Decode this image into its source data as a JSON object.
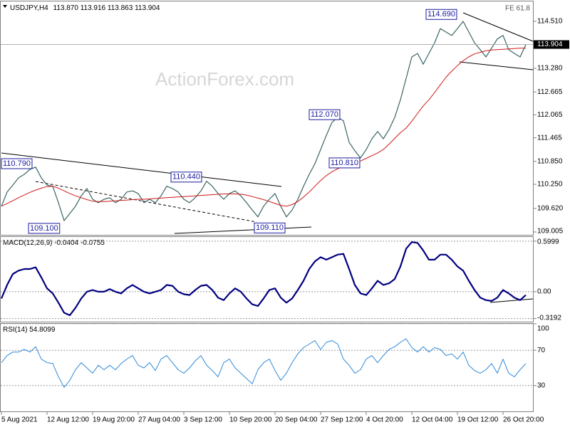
{
  "watermark": "ActionForex.com",
  "chart_data": [
    {
      "type": "line",
      "symbol": "USDJPY,H4",
      "ohlc_header": [
        "113.870",
        "113.916",
        "113.863",
        "113.904"
      ],
      "corner_note": "FE 61.8",
      "ylim": [
        108.93,
        115.03
      ],
      "yticks": [
        {
          "value": 114.51,
          "label": "114.510"
        },
        {
          "value": 113.28,
          "label": "113.280"
        },
        112.665,
        112.065,
        111.465,
        {
          "value": 110.85,
          "label": "110.850"
        },
        {
          "value": 110.25,
          "label": "110.250"
        },
        {
          "value": 109.62,
          "label": "109.620"
        },
        109.005
      ],
      "grid": false,
      "last_price": {
        "value": 113.904,
        "label": "113.904"
      },
      "annotations": [
        {
          "label": "114.690",
          "value": 114.69
        },
        {
          "label": "112.070",
          "value": 112.07
        },
        {
          "label": "110.810",
          "value": 110.81
        },
        {
          "label": "110.790",
          "value": 110.79
        },
        {
          "label": "110.440",
          "value": 110.44
        },
        {
          "label": "109.100",
          "value": 109.1
        },
        {
          "label": "109.110",
          "value": 109.11
        }
      ],
      "series": [
        {
          "color": "#3a6464",
          "width": 1.2,
          "values": [
            109.68,
            110.05,
            110.23,
            110.42,
            110.51,
            110.64,
            110.7,
            110.42,
            110.23,
            110.2,
            109.77,
            109.3,
            109.49,
            109.68,
            109.95,
            110.14,
            109.86,
            109.77,
            109.86,
            109.9,
            109.77,
            109.86,
            110.05,
            110.08,
            110.01,
            109.77,
            109.86,
            109.77,
            109.95,
            110.2,
            110.14,
            110.05,
            109.86,
            109.77,
            109.9,
            110.08,
            110.33,
            110.2,
            110.01,
            109.86,
            110.01,
            110.08,
            109.95,
            109.77,
            109.58,
            109.4,
            109.68,
            109.86,
            110.01,
            109.68,
            109.4,
            109.58,
            109.86,
            110.2,
            110.51,
            110.79,
            111.16,
            111.53,
            111.87,
            112.0,
            111.91,
            111.35,
            111.13,
            110.94,
            111.16,
            111.44,
            111.63,
            111.44,
            111.68,
            112.0,
            112.46,
            113.02,
            113.58,
            113.67,
            113.39,
            113.67,
            113.95,
            114.32,
            114.23,
            114.14,
            114.32,
            114.51,
            114.23,
            113.95,
            113.77,
            113.58,
            113.81,
            114.05,
            114.14,
            113.77,
            113.67,
            113.58,
            113.9
          ]
        },
        {
          "color": "#d01818",
          "width": 1,
          "values": [
            109.68,
            109.75,
            109.82,
            109.9,
            109.97,
            110.04,
            110.1,
            110.15,
            110.19,
            110.2,
            110.15,
            110.08,
            110.01,
            109.95,
            109.9,
            109.85,
            109.81,
            109.8,
            109.8,
            109.81,
            109.82,
            109.83,
            109.84,
            109.85,
            109.86,
            109.86,
            109.87,
            109.88,
            109.89,
            109.9,
            109.91,
            109.92,
            109.93,
            109.94,
            109.95,
            109.96,
            109.97,
            109.98,
            109.99,
            110.0,
            110.0,
            110.0,
            109.99,
            109.97,
            109.93,
            109.89,
            109.85,
            109.8,
            109.75,
            109.7,
            109.68,
            109.72,
            109.8,
            109.92,
            110.05,
            110.2,
            110.35,
            110.48,
            110.58,
            110.66,
            110.72,
            110.77,
            110.8,
            110.86,
            110.93,
            111.0,
            111.07,
            111.16,
            111.3,
            111.45,
            111.6,
            111.72,
            111.9,
            112.1,
            112.3,
            112.46,
            112.65,
            112.85,
            113.05,
            113.21,
            113.35,
            113.48,
            113.58,
            113.66,
            113.7,
            113.74,
            113.76,
            113.77,
            113.78,
            113.79,
            113.8,
            113.81,
            113.81
          ]
        }
      ]
    },
    {
      "type": "line",
      "title": "MACD(12,26,9)",
      "header_values": [
        -0.0404,
        -0.0755
      ],
      "ylim": [
        -0.356,
        0.65
      ],
      "yticks": [
        0.5999,
        {
          "value": 0,
          "label": "0.00"
        },
        -0.3192
      ],
      "grid": true,
      "series": [
        {
          "color": "#000080",
          "width": 2.2,
          "values": [
            -0.08,
            0.08,
            0.21,
            0.25,
            0.27,
            0.27,
            0.29,
            0.17,
            0.04,
            -0.02,
            -0.13,
            -0.25,
            -0.28,
            -0.19,
            -0.08,
            0.0,
            0.02,
            0.0,
            0.0,
            0.03,
            0.0,
            -0.02,
            0.04,
            0.08,
            0.04,
            0.0,
            -0.02,
            0.0,
            0.02,
            0.08,
            0.07,
            0.0,
            -0.03,
            -0.04,
            0.02,
            0.07,
            0.08,
            0.02,
            -0.07,
            -0.1,
            -0.02,
            0.04,
            0.0,
            -0.08,
            -0.15,
            -0.17,
            -0.08,
            0.02,
            0.04,
            -0.07,
            -0.13,
            -0.08,
            0.02,
            0.13,
            0.27,
            0.36,
            0.41,
            0.38,
            0.41,
            0.44,
            0.45,
            0.27,
            0.08,
            -0.02,
            -0.04,
            0.04,
            0.13,
            0.08,
            0.1,
            0.15,
            0.3,
            0.51,
            0.59,
            0.58,
            0.49,
            0.38,
            0.38,
            0.44,
            0.44,
            0.38,
            0.3,
            0.25,
            0.13,
            0.02,
            -0.07,
            -0.1,
            -0.11,
            -0.07,
            0.02,
            -0.02,
            -0.07,
            -0.1,
            -0.04
          ]
        }
      ]
    },
    {
      "type": "line",
      "title": "RSI(14)",
      "header_values": [
        54.8099
      ],
      "ylim": [
        0,
        100
      ],
      "yticks": [
        100,
        70,
        30
      ],
      "grid": true,
      "categories": [
        "5 Aug 2021",
        null,
        null,
        null,
        null,
        null,
        null,
        null,
        "12 Aug 12:00",
        null,
        null,
        null,
        null,
        null,
        null,
        null,
        "19 Aug 20:00",
        null,
        null,
        null,
        null,
        null,
        null,
        null,
        "27 Aug 04:00",
        null,
        null,
        null,
        null,
        null,
        null,
        null,
        "3 Sep 12:00",
        null,
        null,
        null,
        null,
        null,
        null,
        null,
        "10 Sep 20:00",
        null,
        null,
        null,
        null,
        null,
        null,
        null,
        "20 Sep 04:00",
        null,
        null,
        null,
        null,
        null,
        null,
        null,
        "27 Sep 12:00",
        null,
        null,
        null,
        null,
        null,
        null,
        null,
        "4 Oct 20:00",
        null,
        null,
        null,
        null,
        null,
        null,
        null,
        "12 Oct 04:00",
        null,
        null,
        null,
        null,
        null,
        null,
        null,
        "19 Oct 12:00",
        null,
        null,
        null,
        null,
        null,
        null,
        null,
        "26 Oct 20:00",
        null,
        null,
        null,
        null
      ],
      "series": [
        {
          "color": "#2f8ad8",
          "width": 1,
          "values": [
            56,
            64,
            68,
            68,
            71,
            68,
            74,
            60,
            56,
            55,
            40,
            28,
            36,
            48,
            56,
            50,
            44,
            53,
            48,
            53,
            48,
            55,
            60,
            64,
            53,
            50,
            56,
            47,
            60,
            64,
            56,
            48,
            44,
            50,
            58,
            64,
            53,
            47,
            40,
            56,
            60,
            50,
            44,
            38,
            32,
            48,
            56,
            60,
            47,
            36,
            44,
            56,
            66,
            73,
            77,
            81,
            71,
            79,
            81,
            77,
            60,
            53,
            44,
            48,
            60,
            64,
            56,
            64,
            71,
            74,
            79,
            83,
            73,
            68,
            74,
            68,
            73,
            71,
            64,
            66,
            60,
            68,
            53,
            47,
            44,
            48,
            55,
            44,
            60,
            44,
            40,
            48,
            55
          ]
        }
      ]
    }
  ]
}
